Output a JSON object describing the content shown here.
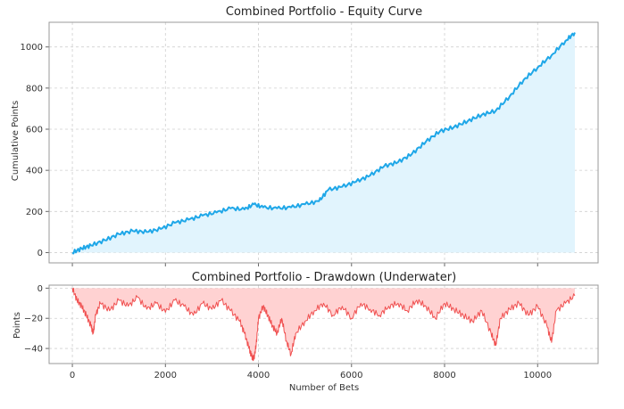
{
  "chart_data": [
    {
      "type": "area",
      "title": "Combined Portfolio - Equity Curve",
      "xlabel": "",
      "ylabel": "Cumulative Points",
      "xlim": [
        -500,
        11300
      ],
      "ylim": [
        -50,
        1120
      ],
      "x_ticks": [
        0,
        2000,
        4000,
        6000,
        8000,
        10000
      ],
      "y_ticks": [
        0,
        200,
        400,
        600,
        800,
        1000
      ],
      "y_tick_labels": [
        "0",
        "200",
        "400",
        "600",
        "800",
        "1000"
      ],
      "grid": true,
      "series": [
        {
          "name": "Equity",
          "color": "#1fa7e8",
          "fill": "#e1f4fd",
          "x": [
            0,
            200,
            400,
            700,
            1000,
            1300,
            1600,
            1900,
            2200,
            2500,
            2800,
            3100,
            3400,
            3700,
            3900,
            4100,
            4400,
            4700,
            5000,
            5300,
            5500,
            5800,
            6100,
            6400,
            6700,
            7000,
            7300,
            7600,
            7900,
            8200,
            8500,
            8800,
            9100,
            9400,
            9700,
            10000,
            10300,
            10600,
            10800
          ],
          "values": [
            0,
            20,
            35,
            60,
            90,
            105,
            100,
            115,
            145,
            160,
            180,
            195,
            215,
            210,
            235,
            220,
            215,
            220,
            235,
            250,
            305,
            320,
            345,
            375,
            420,
            440,
            480,
            540,
            590,
            610,
            640,
            670,
            690,
            760,
            840,
            900,
            960,
            1030,
            1070
          ]
        }
      ]
    },
    {
      "type": "area",
      "title": "Combined Portfolio - Drawdown (Underwater)",
      "xlabel": "Number of Bets",
      "ylabel": "Points",
      "xlim": [
        -500,
        11300
      ],
      "ylim": [
        -50,
        2
      ],
      "x_ticks": [
        0,
        2000,
        4000,
        6000,
        8000,
        10000
      ],
      "x_tick_labels": [
        "0",
        "2000",
        "4000",
        "6000",
        "8000",
        "10000"
      ],
      "y_ticks": [
        0,
        -20,
        -40
      ],
      "y_tick_labels": [
        "0",
        "−20",
        "−40"
      ],
      "grid": true,
      "series": [
        {
          "name": "Drawdown",
          "color": "#f05050",
          "fill": "#ffd2d2",
          "x": [
            0,
            100,
            200,
            300,
            400,
            450,
            500,
            600,
            800,
            1000,
            1200,
            1400,
            1600,
            1800,
            2000,
            2200,
            2400,
            2600,
            2800,
            3000,
            3200,
            3400,
            3600,
            3700,
            3800,
            3850,
            3900,
            3950,
            4000,
            4100,
            4200,
            4300,
            4400,
            4500,
            4600,
            4700,
            4800,
            5000,
            5200,
            5400,
            5600,
            5800,
            6000,
            6200,
            6400,
            6600,
            6800,
            7000,
            7200,
            7400,
            7600,
            7800,
            8000,
            8200,
            8400,
            8600,
            8800,
            9000,
            9100,
            9200,
            9400,
            9600,
            9800,
            10000,
            10200,
            10300,
            10400,
            10600,
            10800
          ],
          "values": [
            0,
            -8,
            -12,
            -18,
            -25,
            -30,
            -18,
            -10,
            -15,
            -8,
            -12,
            -6,
            -14,
            -10,
            -16,
            -8,
            -12,
            -18,
            -10,
            -14,
            -8,
            -15,
            -22,
            -30,
            -40,
            -45,
            -47,
            -38,
            -20,
            -12,
            -18,
            -25,
            -30,
            -20,
            -35,
            -44,
            -30,
            -22,
            -15,
            -10,
            -18,
            -12,
            -20,
            -10,
            -14,
            -18,
            -12,
            -10,
            -15,
            -8,
            -12,
            -20,
            -10,
            -14,
            -18,
            -22,
            -15,
            -30,
            -38,
            -20,
            -14,
            -10,
            -18,
            -12,
            -25,
            -36,
            -15,
            -10,
            -5
          ]
        }
      ]
    }
  ]
}
